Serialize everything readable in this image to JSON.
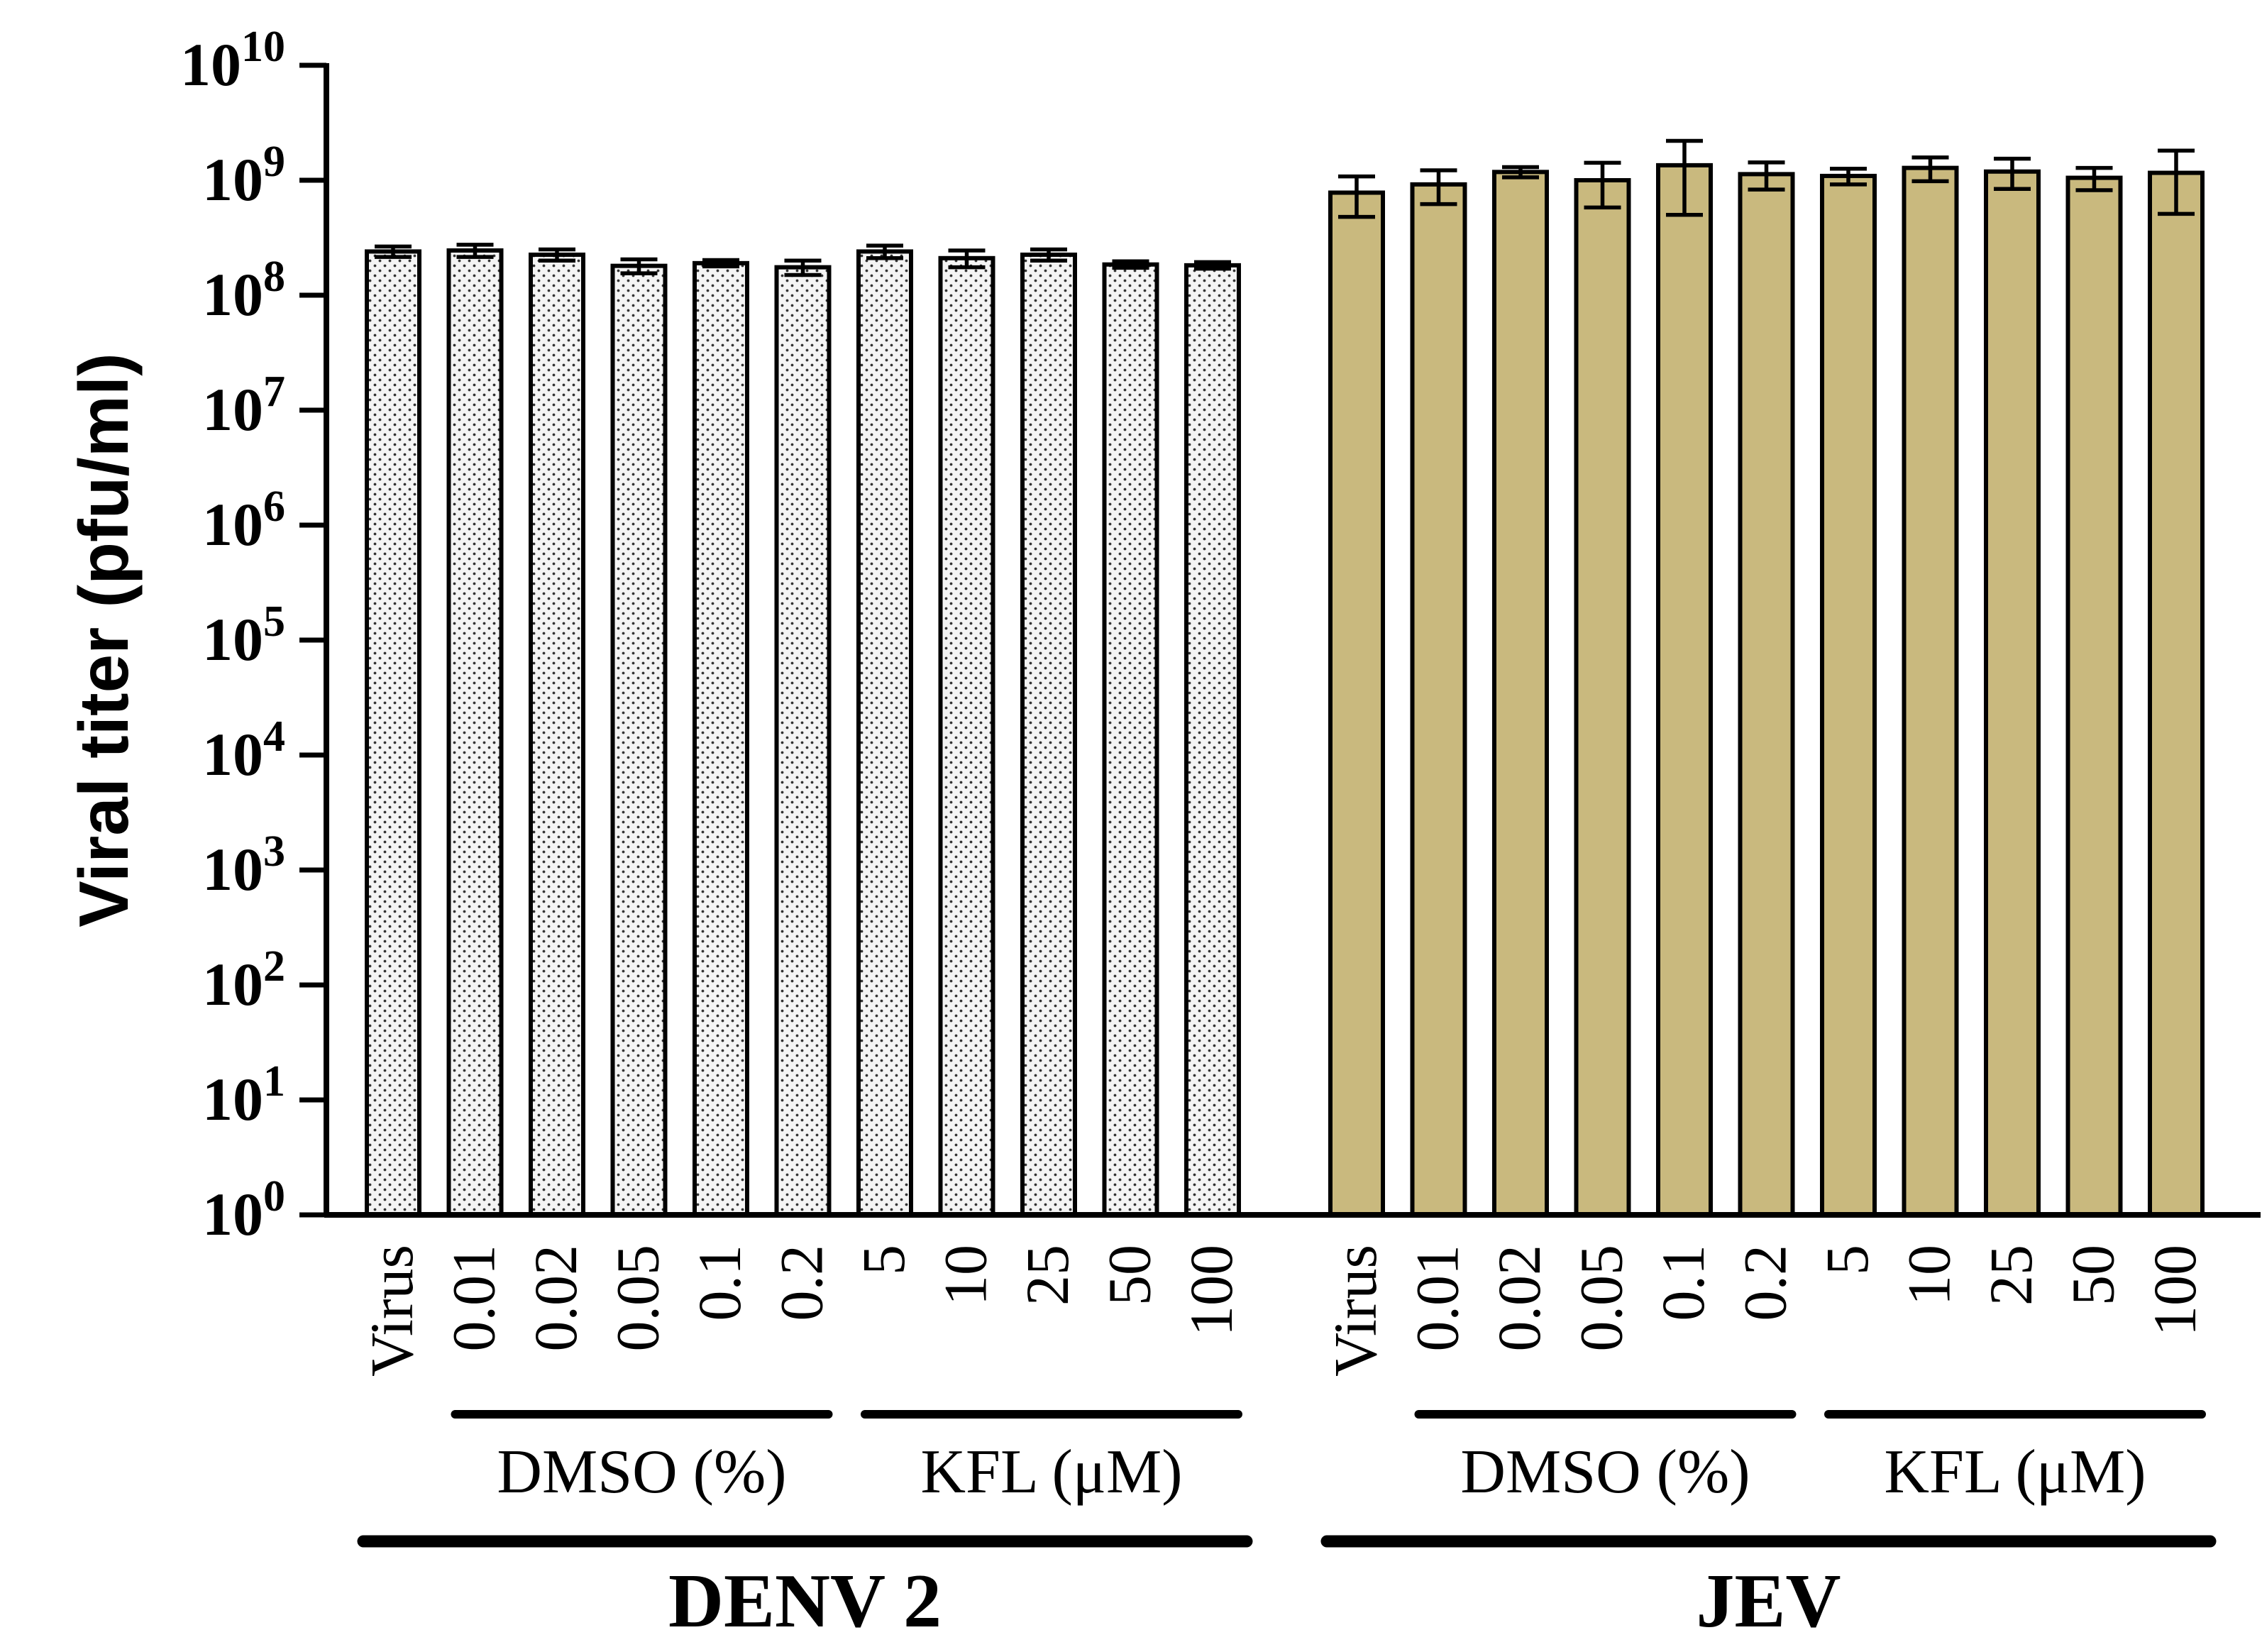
{
  "chart_data": {
    "type": "bar",
    "scale": "log",
    "ylabel": "Viral titer (pfu/ml)",
    "ylim": [
      1,
      10000000000
    ],
    "ytick_base": "10",
    "ytick_exponents": [
      "0",
      "1",
      "2",
      "3",
      "4",
      "5",
      "6",
      "7",
      "8",
      "9",
      "10"
    ],
    "categories": [
      "Virus",
      "0.01",
      "0.02",
      "0.05",
      "0.1",
      "0.2",
      "5",
      "10",
      "25",
      "50",
      "100"
    ],
    "subgroups": [
      {
        "label": "DMSO (%)",
        "from": 1,
        "to": 5
      },
      {
        "label": "KFL (μM)",
        "from": 6,
        "to": 10
      }
    ],
    "series": [
      {
        "name": "DENV 2",
        "color": "#efefef",
        "pattern": "dotted",
        "values": [
          240000000,
          245000000,
          225000000,
          180000000,
          190000000,
          175000000,
          240000000,
          210000000,
          225000000,
          185000000,
          182000000
        ],
        "errors": [
          25000000,
          30000000,
          25000000,
          25000000,
          12000000,
          25000000,
          30000000,
          35000000,
          25000000,
          12000000,
          12000000
        ]
      },
      {
        "name": "JEV",
        "color": "#c9b97e",
        "pattern": "solid",
        "values": [
          780000000,
          920000000,
          1180000000,
          1000000000,
          1350000000,
          1130000000,
          1090000000,
          1280000000,
          1190000000,
          1050000000,
          1160000000
        ],
        "errors": [
          300000000,
          300000000,
          120000000,
          420000000,
          850000000,
          300000000,
          170000000,
          300000000,
          350000000,
          230000000,
          650000000
        ]
      }
    ]
  }
}
